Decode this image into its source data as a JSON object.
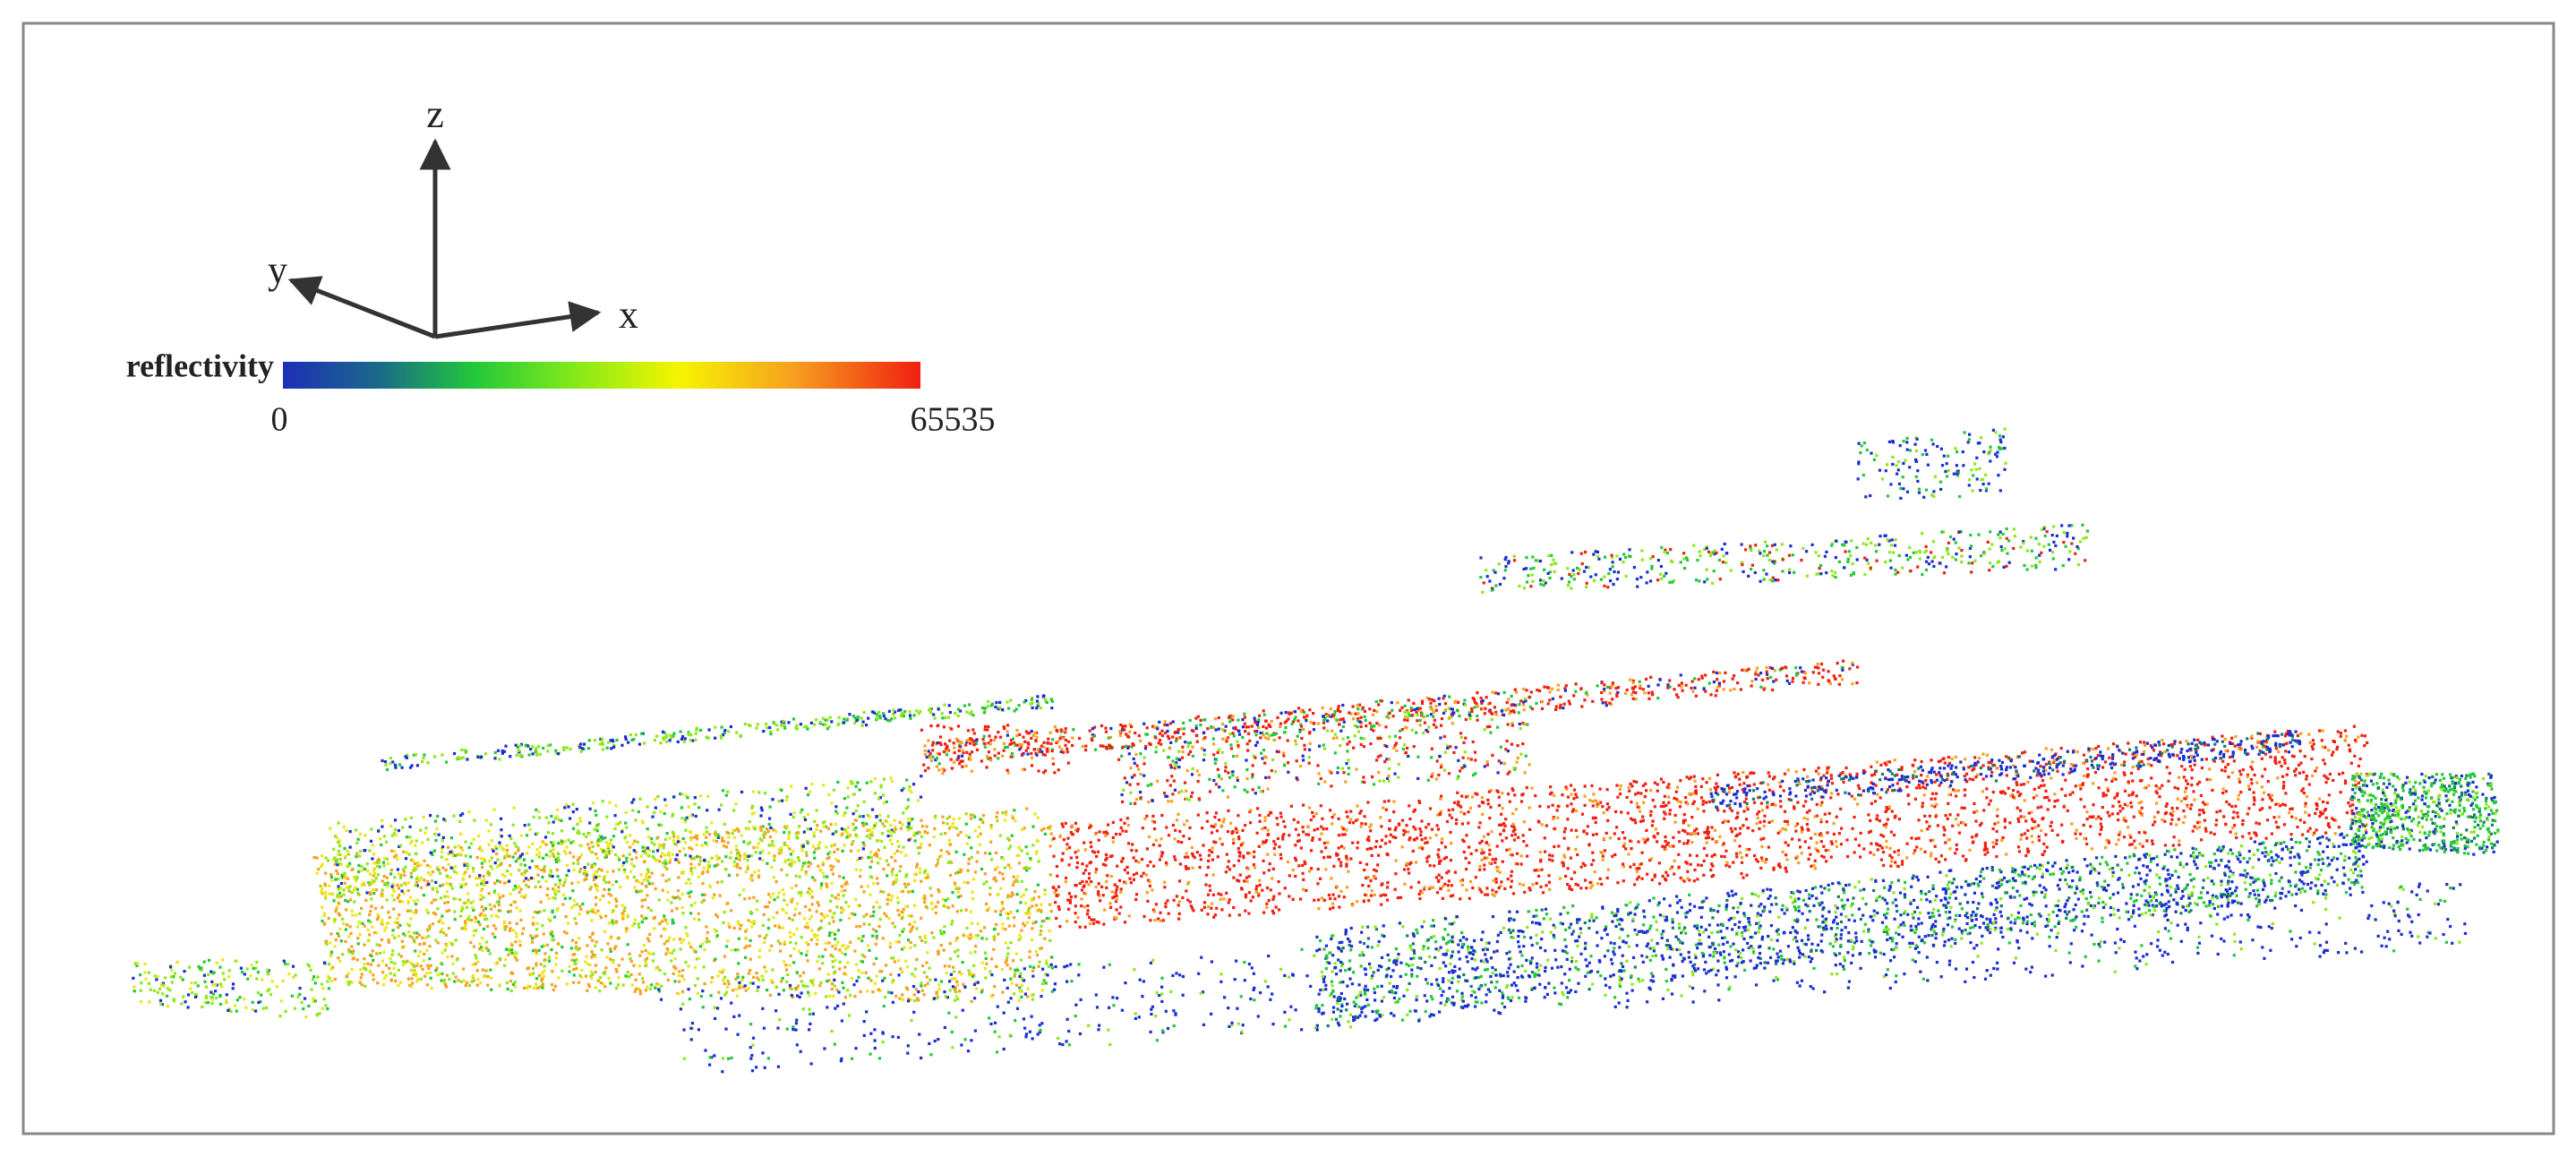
{
  "axes": {
    "z": "z",
    "y": "y",
    "x": "x"
  },
  "colorbar": {
    "label": "reflectivity",
    "min": 0,
    "max": 65535
  }
}
